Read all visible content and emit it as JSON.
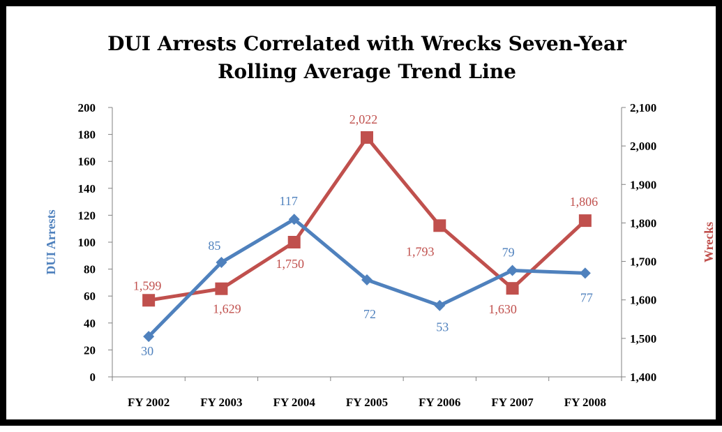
{
  "chart_data": {
    "type": "line",
    "title_line1": "DUI Arrests Correlated with Wrecks Seven-Year",
    "title_line2": "Rolling Average Trend Line",
    "categories": [
      "FY 2002",
      "FY 2003",
      "FY 2004",
      "FY 2005",
      "FY 2006",
      "FY 2007",
      "FY 2008"
    ],
    "y_left": {
      "label": "DUI Arrests",
      "range": [
        0,
        200
      ],
      "ticks": [
        "0",
        "20",
        "40",
        "60",
        "80",
        "100",
        "120",
        "140",
        "160",
        "180",
        "200"
      ]
    },
    "y_right": {
      "label": "Wrecks",
      "range": [
        1400,
        2100
      ],
      "ticks": [
        "1,400",
        "1,500",
        "1,600",
        "1,700",
        "1,800",
        "1,900",
        "2,000",
        "2,100"
      ]
    },
    "grid": false,
    "legend": "none",
    "series": [
      {
        "name": "DUI Arrests",
        "axis": "left",
        "marker": "diamond",
        "color": "#4F81BD",
        "values": [
          30,
          85,
          117,
          72,
          53,
          79,
          77
        ],
        "labels": [
          "30",
          "85",
          "117",
          "72",
          "53",
          "79",
          "77"
        ]
      },
      {
        "name": "Wrecks",
        "axis": "right",
        "marker": "square",
        "color": "#C0504D",
        "values": [
          1599,
          1629,
          1750,
          2022,
          1793,
          1630,
          1806
        ],
        "labels": [
          "1,599",
          "1,629",
          "1,750",
          "2,022",
          "1,793",
          "1,630",
          "1,806"
        ]
      }
    ]
  }
}
